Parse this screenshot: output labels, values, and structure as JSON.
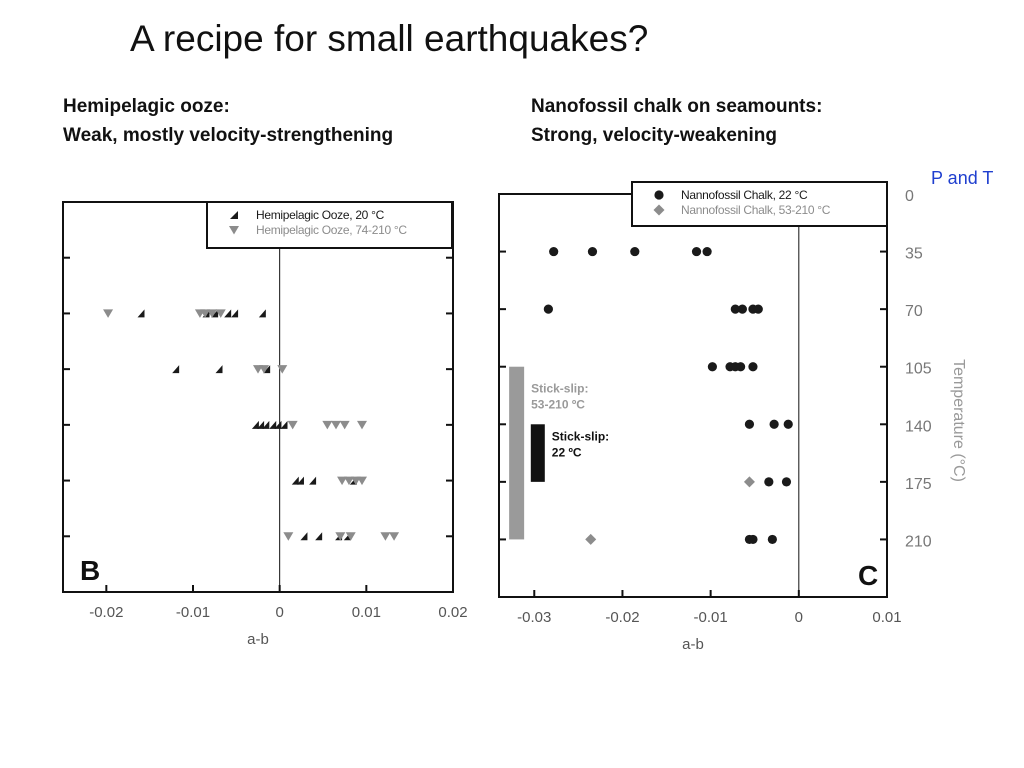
{
  "slide": {
    "title": "A recipe for small earthquakes?",
    "left_heading": [
      "Hemipelagic ooze:",
      "Weak, mostly velocity-strengthening"
    ],
    "right_heading": [
      "Nanofossil chalk on seamounts:",
      "Strong, velocity-weakening"
    ],
    "cropped_caption": "P and T"
  },
  "colors": {
    "dark": "#1a1a1a",
    "gray": "#8c8c8c",
    "bar_gray": "#9a9a9a",
    "black_bar": "#111111",
    "caption_blue": "#1f3fcf",
    "axis_text": "#555555"
  },
  "chart_data": [
    {
      "id": "B",
      "type": "scatter",
      "panel_label": "B",
      "xlabel": "a-b",
      "xlim": [
        -0.025,
        0.02
      ],
      "xticks": [
        -0.02,
        -0.01,
        0,
        0.01,
        0.02
      ],
      "xtick_labels": [
        "-0.02",
        "-0.01",
        "0",
        "0.01",
        "0.02"
      ],
      "ylim": [
        0,
        245
      ],
      "yticks": [
        35,
        70,
        105,
        140,
        175,
        210
      ],
      "ylabel": "",
      "y_inverted": true,
      "legend_position": "top-right",
      "zero_line": true,
      "series": [
        {
          "name": "Hemipelagic Ooze, 20 °C",
          "marker": "triangle-up",
          "color": "#1a1a1a",
          "points": [
            [
              -0.016,
              70
            ],
            [
              -0.0085,
              70
            ],
            [
              -0.0075,
              70
            ],
            [
              -0.006,
              70
            ],
            [
              -0.0052,
              70
            ],
            [
              -0.002,
              70
            ],
            [
              -0.012,
              105
            ],
            [
              -0.007,
              105
            ],
            [
              -0.0015,
              105
            ],
            [
              -0.0028,
              140
            ],
            [
              -0.0022,
              140
            ],
            [
              -0.0016,
              140
            ],
            [
              -0.0008,
              140
            ],
            [
              -0.0002,
              140
            ],
            [
              0.0005,
              140
            ],
            [
              0.0018,
              175
            ],
            [
              0.0024,
              175
            ],
            [
              0.0038,
              175
            ],
            [
              0.0085,
              175
            ],
            [
              0.0028,
              210
            ],
            [
              0.0045,
              210
            ],
            [
              0.0068,
              210
            ],
            [
              0.0078,
              210
            ]
          ]
        },
        {
          "name": "Hemipelagic Ooze, 74-210 °C",
          "marker": "triangle-down",
          "color": "#8c8c8c",
          "points": [
            [
              -0.0198,
              70
            ],
            [
              -0.0092,
              70
            ],
            [
              -0.0086,
              70
            ],
            [
              -0.0078,
              70
            ],
            [
              -0.0068,
              70
            ],
            [
              -0.0025,
              105
            ],
            [
              -0.0018,
              105
            ],
            [
              0.0003,
              105
            ],
            [
              0.0015,
              140
            ],
            [
              0.0055,
              140
            ],
            [
              0.0065,
              140
            ],
            [
              0.0075,
              140
            ],
            [
              0.0095,
              140
            ],
            [
              0.0072,
              175
            ],
            [
              0.008,
              175
            ],
            [
              0.0088,
              175
            ],
            [
              0.0095,
              175
            ],
            [
              0.001,
              210
            ],
            [
              0.007,
              210
            ],
            [
              0.0082,
              210
            ],
            [
              0.0122,
              210
            ],
            [
              0.0132,
              210
            ]
          ]
        }
      ]
    },
    {
      "id": "C",
      "type": "scatter",
      "panel_label": "C",
      "xlabel": "a-b",
      "xlim": [
        -0.034,
        0.01
      ],
      "xticks": [
        -0.03,
        -0.02,
        -0.01,
        0,
        0.01
      ],
      "xtick_labels": [
        "-0.03",
        "-0.02",
        "-0.01",
        "0",
        "0.01"
      ],
      "ylim": [
        0,
        245
      ],
      "yticks": [
        0,
        35,
        70,
        105,
        140,
        175,
        210
      ],
      "right_axis_ticks": [
        "0",
        "35",
        "70",
        "105",
        "140",
        "175",
        "210"
      ],
      "ylabel": "Temperature (°C)",
      "y_inverted": true,
      "legend_position": "top-right",
      "zero_line": true,
      "series": [
        {
          "name": "Nannofossil Chalk, 22 °C",
          "marker": "circle",
          "color": "#1a1a1a",
          "points": [
            [
              -0.0278,
              35
            ],
            [
              -0.0234,
              35
            ],
            [
              -0.0186,
              35
            ],
            [
              -0.0116,
              35
            ],
            [
              -0.0104,
              35
            ],
            [
              -0.0284,
              70
            ],
            [
              -0.0072,
              70
            ],
            [
              -0.0064,
              70
            ],
            [
              -0.0052,
              70
            ],
            [
              -0.0046,
              70
            ],
            [
              -0.0098,
              105
            ],
            [
              -0.0078,
              105
            ],
            [
              -0.0072,
              105
            ],
            [
              -0.0066,
              105
            ],
            [
              -0.0052,
              105
            ],
            [
              -0.0056,
              140
            ],
            [
              -0.0028,
              140
            ],
            [
              -0.0012,
              140
            ],
            [
              -0.0034,
              175
            ],
            [
              -0.0014,
              175
            ],
            [
              -0.0056,
              210
            ],
            [
              -0.0052,
              210
            ],
            [
              -0.003,
              210
            ]
          ]
        },
        {
          "name": "Nannofossil Chalk, 53-210 °C",
          "marker": "diamond",
          "color": "#8c8c8c",
          "points": [
            [
              -0.0056,
              175
            ],
            [
              -0.0236,
              210
            ]
          ]
        }
      ],
      "annotations": [
        {
          "text": "Stick-slip:",
          "text2": "53-210 ºC",
          "x": -0.032,
          "y_range": [
            105,
            210
          ],
          "color": "#9a9a9a"
        },
        {
          "text": "Stick-slip:",
          "text2": "22 ºC",
          "x": -0.0296,
          "y_range": [
            140,
            175
          ],
          "color": "#111111"
        }
      ]
    }
  ]
}
